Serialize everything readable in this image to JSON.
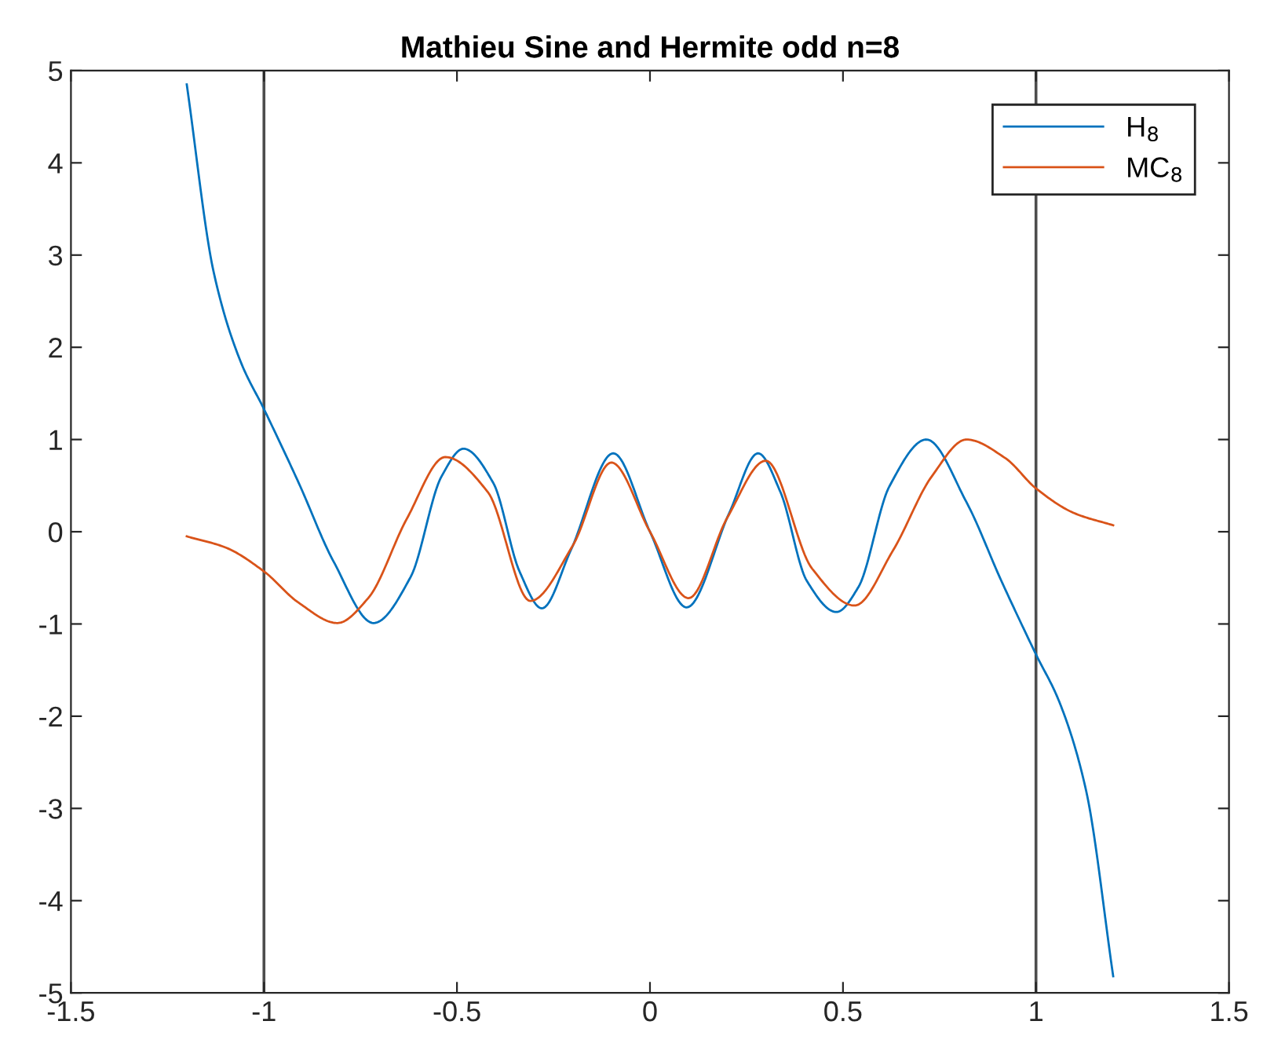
{
  "chart_data": {
    "type": "line",
    "title": "Mathieu Sine and Hermite odd n=8",
    "series": [
      {
        "name": "H$_{8}$",
        "color": "#0072bd",
        "x": [
          -1.2,
          -1.13,
          -1.06,
          -1.0,
          -0.91,
          -0.82,
          -0.716,
          -0.62,
          -0.54,
          -0.483,
          -0.406,
          -0.338,
          -0.28,
          -0.205,
          -0.095,
          0,
          0.095,
          0.205,
          0.28,
          0.338,
          0.406,
          0.483,
          0.54,
          0.62,
          0.716,
          0.82,
          0.91,
          1.0,
          1.06,
          1.13,
          1.2
        ],
        "values": [
          4.85,
          2.81,
          1.84,
          1.33,
          0.53,
          -0.32,
          -0.99,
          -0.49,
          0.6,
          0.9,
          0.53,
          -0.43,
          -0.83,
          -0.2,
          0.85,
          0,
          -0.82,
          0.2,
          0.85,
          0.43,
          -0.53,
          -0.87,
          -0.6,
          0.49,
          1.0,
          0.32,
          -0.53,
          -1.33,
          -1.84,
          -2.81,
          -4.82
        ]
      },
      {
        "name": "MC$_{8}$",
        "color": "#d95319",
        "x": [
          -1.2,
          -1.1,
          -1.0,
          -0.91,
          -0.81,
          -0.73,
          -0.63,
          -0.53,
          -0.42,
          -0.31,
          -0.2,
          -0.1,
          0,
          0.1,
          0.2,
          0.3,
          0.42,
          0.53,
          0.63,
          0.73,
          0.82,
          0.92,
          1.0,
          1.1,
          1.2
        ],
        "values": [
          -0.05,
          -0.17,
          -0.43,
          -0.77,
          -0.99,
          -0.72,
          0.14,
          0.81,
          0.43,
          -0.75,
          -0.15,
          0.75,
          0.0,
          -0.72,
          0.15,
          0.77,
          -0.4,
          -0.8,
          -0.2,
          0.6,
          1.0,
          0.8,
          0.47,
          0.2,
          0.07
        ]
      }
    ],
    "ref_lines": [
      {
        "axis": "x",
        "value": -1,
        "label": null,
        "color": "#4d4d4d"
      },
      {
        "axis": "x",
        "value": 1,
        "label": null,
        "color": "#4d4d4d"
      }
    ],
    "xlim": [
      -1.5,
      1.5
    ],
    "xticks": [
      -1.5,
      -1,
      -0.5,
      0,
      0.5,
      1,
      1.5
    ],
    "ylim": [
      -5,
      5
    ],
    "yticks": [
      -5,
      -4,
      -3,
      -2,
      -1,
      0,
      1,
      2,
      3,
      4,
      5
    ],
    "grid": false,
    "legend": "top right",
    "marker": "none",
    "line_style": "solid"
  }
}
